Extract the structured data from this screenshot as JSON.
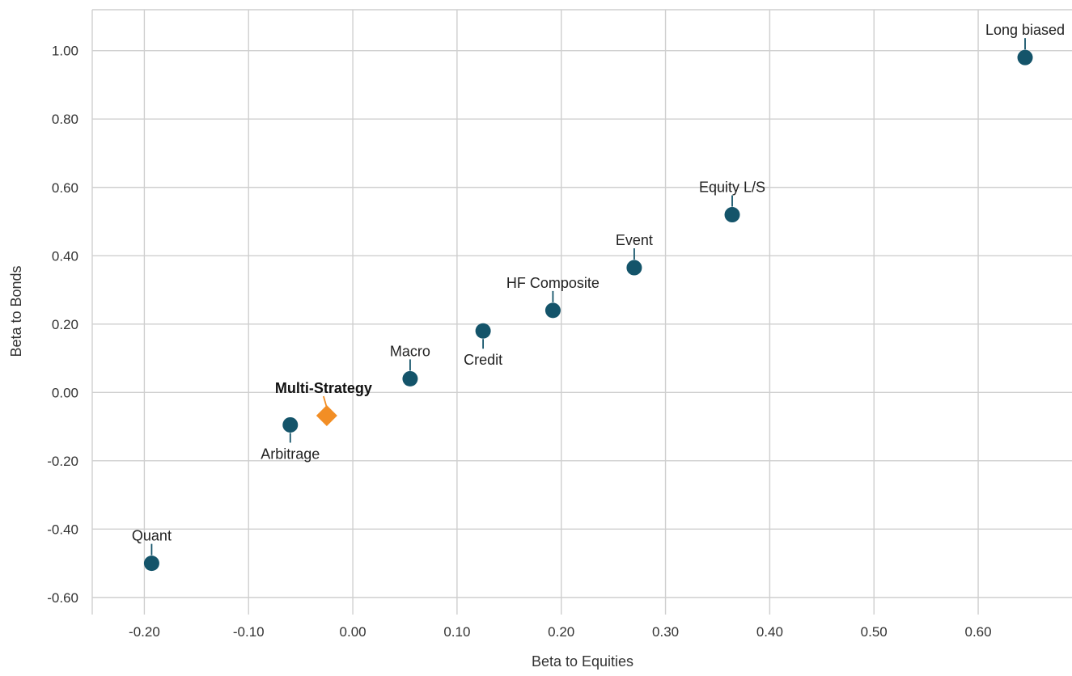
{
  "chart_data": {
    "type": "scatter",
    "xlabel": "Beta to Equities",
    "ylabel": "Beta to Bonds",
    "xlim": [
      -0.25,
      0.69
    ],
    "ylim": [
      -0.65,
      1.12
    ],
    "x_ticks": [
      "-0.20",
      "-0.10",
      "0.00",
      "0.10",
      "0.20",
      "0.30",
      "0.40",
      "0.50",
      "0.60"
    ],
    "y_ticks": [
      "1.00",
      "0.80",
      "0.60",
      "0.40",
      "0.20",
      "0.00",
      "-0.20",
      "-0.40",
      "-0.60"
    ],
    "grid": true,
    "colors": {
      "series": "#14546a",
      "highlight": "#f28e25"
    },
    "points": [
      {
        "label": "Long biased",
        "x": 0.645,
        "y": 0.98,
        "label_pos": "above",
        "marker": "circle"
      },
      {
        "label": "Equity L/S",
        "x": 0.364,
        "y": 0.52,
        "label_pos": "above",
        "marker": "circle"
      },
      {
        "label": "Event",
        "x": 0.27,
        "y": 0.365,
        "label_pos": "above",
        "marker": "circle"
      },
      {
        "label": "HF Composite",
        "x": 0.192,
        "y": 0.24,
        "label_pos": "above",
        "marker": "circle"
      },
      {
        "label": "Credit",
        "x": 0.125,
        "y": 0.18,
        "label_pos": "below",
        "marker": "circle"
      },
      {
        "label": "Macro",
        "x": 0.055,
        "y": 0.04,
        "label_pos": "above",
        "marker": "circle"
      },
      {
        "label": "Multi-Strategy",
        "x": -0.025,
        "y": -0.068,
        "label_pos": "above",
        "marker": "diamond",
        "highlight": true
      },
      {
        "label": "Arbitrage",
        "x": -0.06,
        "y": -0.095,
        "label_pos": "below",
        "marker": "circle"
      },
      {
        "label": "Quant",
        "x": -0.193,
        "y": -0.5,
        "label_pos": "above",
        "marker": "circle"
      }
    ]
  }
}
